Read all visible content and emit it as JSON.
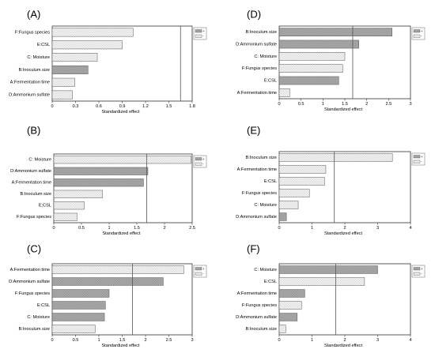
{
  "legend_symbols": {
    "positive": "+",
    "negative": "-"
  },
  "colors": {
    "positive_fill": "#a8a8a8",
    "negative_fill": "#efefef",
    "grid_line": "#555555"
  },
  "chart_data": [
    {
      "panel_label": "(A)",
      "type": "bar",
      "orientation": "horizontal",
      "xlabel": "Standardized effect",
      "xlim": [
        0,
        1.8
      ],
      "xticks": [
        "0",
        "0.3",
        "0.6",
        "0.9",
        "1.2",
        "1.5",
        "1.8"
      ],
      "reference_line": 1.65,
      "legend": "top-right",
      "categories": [
        "F:Fungus species",
        "E:CSL",
        "C: Moisture",
        "B:Inoculum size",
        "A:Fermentation time",
        "D:Ammonium sulfate"
      ],
      "values": [
        1.04,
        0.9,
        0.58,
        0.46,
        0.29,
        0.26
      ],
      "signs": [
        "-",
        "-",
        "-",
        "+",
        "-",
        "-"
      ]
    },
    {
      "panel_label": "(B)",
      "type": "bar",
      "orientation": "horizontal",
      "xlabel": "Standardized effect",
      "xlim": [
        0,
        2.5
      ],
      "xticks": [
        "0",
        "0.5",
        "1",
        "1.5",
        "2",
        "2.5"
      ],
      "reference_line": 1.68,
      "legend": "top-right",
      "categories": [
        "C: Moisture",
        "D:Ammonium sulfate",
        "A:Fermentation time",
        "B:Inoculum size",
        "E:CSL",
        "F:Fungus species"
      ],
      "values": [
        2.48,
        1.7,
        1.62,
        0.88,
        0.55,
        0.42
      ],
      "signs": [
        "-",
        "+",
        "+",
        "-",
        "-",
        "-"
      ]
    },
    {
      "panel_label": "(C)",
      "type": "bar",
      "orientation": "horizontal",
      "xlabel": "Standardized effect",
      "xlim": [
        0,
        3
      ],
      "xticks": [
        "0",
        "0.5",
        "1",
        "1.5",
        "2",
        "2.5",
        "3"
      ],
      "reference_line": 1.72,
      "legend": "top-right",
      "categories": [
        "A:Fermentation time",
        "D:Ammonium sulfate",
        "F:Fungus species",
        "E:CSL",
        "C: Moisture",
        "B:Inoculum size"
      ],
      "values": [
        2.82,
        2.38,
        1.22,
        1.14,
        1.12,
        0.92
      ],
      "signs": [
        "-",
        "+",
        "+",
        "+",
        "+",
        "-"
      ]
    },
    {
      "panel_label": "(D)",
      "type": "bar",
      "orientation": "horizontal",
      "xlabel": "Standardized effect",
      "xlim": [
        0,
        3
      ],
      "xticks": [
        "0",
        "0.5",
        "1",
        "1.5",
        "2",
        "2.5",
        "3"
      ],
      "reference_line": 1.68,
      "legend": "top-right",
      "categories": [
        "B:Inoculum size",
        "D:Ammonium sulfate",
        "C: Moisture",
        "F:Fungus species",
        "E:CSL",
        "A:Fermentation time"
      ],
      "values": [
        2.58,
        1.82,
        1.5,
        1.45,
        1.36,
        0.24
      ],
      "signs": [
        "+",
        "+",
        "-",
        "-",
        "+",
        "-"
      ]
    },
    {
      "panel_label": "(E)",
      "type": "bar",
      "orientation": "horizontal",
      "xlabel": "Standardized effect",
      "xlim": [
        0,
        4
      ],
      "xticks": [
        "0",
        "1",
        "2",
        "3",
        "4"
      ],
      "reference_line": 1.68,
      "legend": "top-right",
      "categories": [
        "B:Inoculum size",
        "A:Fermentation time",
        "E:CSL",
        "F:Fungus species",
        "C: Moisture",
        "D:Ammonium sulfate"
      ],
      "values": [
        3.45,
        1.42,
        1.38,
        0.92,
        0.58,
        0.22
      ],
      "signs": [
        "-",
        "-",
        "-",
        "-",
        "-",
        "+"
      ]
    },
    {
      "panel_label": "(F)",
      "type": "bar",
      "orientation": "horizontal",
      "xlabel": "Standardized effect",
      "xlim": [
        0,
        4
      ],
      "xticks": [
        "0",
        "1",
        "2",
        "3",
        "4"
      ],
      "reference_line": 1.72,
      "legend": "top-right",
      "categories": [
        "C: Moisture",
        "E:CSL",
        "A:Fermentation time",
        "F:Fungus species",
        "D:Ammonium sulfate",
        "B:Inoculum size"
      ],
      "values": [
        3.0,
        2.6,
        0.78,
        0.68,
        0.55,
        0.2
      ],
      "signs": [
        "+",
        "-",
        "+",
        "-",
        "+",
        "-"
      ]
    }
  ]
}
